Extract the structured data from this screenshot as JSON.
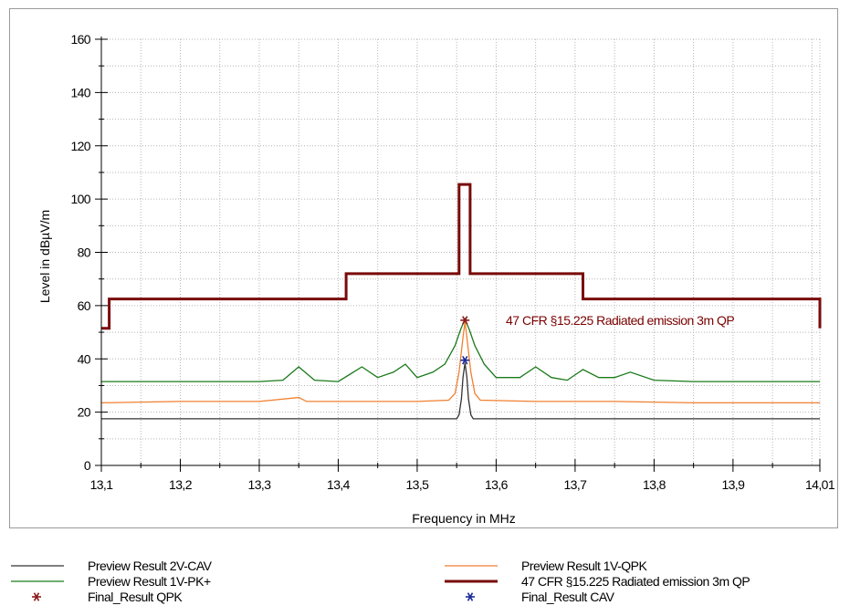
{
  "chart_data": {
    "type": "line",
    "xlabel": "Frequency in MHz",
    "ylabel": "Level in dBµV/m",
    "xlim": [
      13.1,
      14.01
    ],
    "ylim": [
      0,
      160
    ],
    "x_ticks": [
      "13,1",
      "13,2",
      "13,3",
      "13,4",
      "13,5",
      "13,6",
      "13,7",
      "13,8",
      "13,9",
      "14,01"
    ],
    "x_tick_values": [
      13.1,
      13.2,
      13.3,
      13.4,
      13.5,
      13.6,
      13.7,
      13.8,
      13.9,
      14.01
    ],
    "y_ticks": [
      "0",
      "20",
      "40",
      "60",
      "80",
      "100",
      "120",
      "140",
      "160"
    ],
    "y_tick_values": [
      0,
      20,
      40,
      60,
      80,
      100,
      120,
      140,
      160
    ],
    "grid": true,
    "limit_annotation": "47 CFR §15.225 Radiated emission 3m QP",
    "series": [
      {
        "name": "Preview Result 2V-CAV",
        "color": "#333333",
        "style": "line",
        "x": [
          13.1,
          13.55,
          13.553,
          13.556,
          13.558,
          13.5605,
          13.563,
          13.565,
          13.568,
          13.571,
          14.01
        ],
        "y": [
          17.5,
          17.5,
          19,
          25,
          33,
          38.5,
          33,
          25,
          19,
          17.5,
          17.5
        ]
      },
      {
        "name": "Preview Result 1V-QPK",
        "color": "#f08030",
        "style": "line",
        "x": [
          13.1,
          13.2,
          13.3,
          13.35,
          13.36,
          13.4,
          13.5,
          13.54,
          13.548,
          13.553,
          13.558,
          13.5605,
          13.563,
          13.568,
          13.573,
          13.58,
          13.65,
          13.75,
          13.85,
          13.95,
          14.01
        ],
        "y": [
          23.5,
          24,
          24,
          25.5,
          24,
          24,
          24,
          24.5,
          27,
          35,
          48,
          54,
          48,
          35,
          27,
          24.5,
          24,
          24,
          23.5,
          23.5,
          23.5
        ]
      },
      {
        "name": "Preview Result 1V-PK+",
        "color": "#1a7a1a",
        "style": "line",
        "x": [
          13.1,
          13.15,
          13.2,
          13.25,
          13.3,
          13.33,
          13.35,
          13.37,
          13.4,
          13.43,
          13.45,
          13.47,
          13.485,
          13.5,
          13.52,
          13.535,
          13.548,
          13.555,
          13.5605,
          13.566,
          13.573,
          13.585,
          13.6,
          13.63,
          13.65,
          13.67,
          13.69,
          13.71,
          13.73,
          13.75,
          13.77,
          13.8,
          13.85,
          13.9,
          13.95,
          14.01
        ],
        "y": [
          31.5,
          31.5,
          31.5,
          31.5,
          31.5,
          32,
          37,
          32,
          31.5,
          37,
          33,
          35,
          38,
          33,
          35,
          38,
          45,
          51,
          55,
          51,
          45,
          38,
          33,
          33,
          37,
          33,
          32,
          36,
          33,
          33,
          35,
          32,
          31.5,
          31.5,
          31.5,
          31.5
        ]
      },
      {
        "name": "47 CFR §15.225 Radiated emission 3m QP",
        "color": "#7a0a0a",
        "style": "step",
        "x": [
          13.1,
          13.11,
          13.11,
          13.41,
          13.41,
          13.553,
          13.553,
          13.567,
          13.567,
          13.71,
          13.71,
          14.01,
          14.01
        ],
        "y": [
          51.5,
          51.5,
          62.5,
          62.5,
          72,
          72,
          105.5,
          105.5,
          72,
          72,
          62.5,
          62.5,
          51.5
        ]
      },
      {
        "name": "Final_Result QPK",
        "color": "#8b1a1a",
        "style": "marker",
        "x": [
          13.5605
        ],
        "y": [
          54.5
        ]
      },
      {
        "name": "Final_Result CAV",
        "color": "#1a2a9a",
        "style": "marker",
        "x": [
          13.5605
        ],
        "y": [
          39.5
        ]
      }
    ]
  }
}
